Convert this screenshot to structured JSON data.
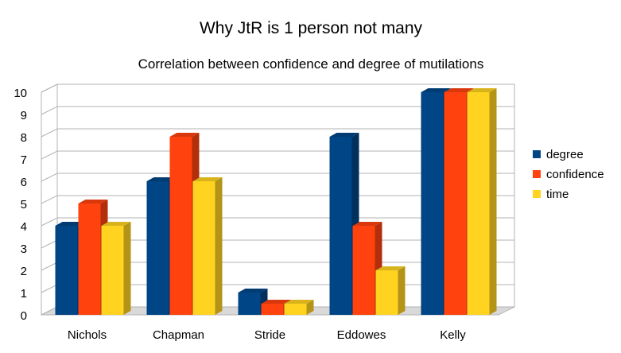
{
  "chart_data": {
    "type": "bar",
    "title": "Why JtR is 1 person not many",
    "subtitle": "Correlation between confidence and degree of mutilations",
    "xlabel": "",
    "ylabel": "",
    "ylim": [
      0,
      10
    ],
    "yticks": [
      "0",
      "1",
      "2",
      "3",
      "4",
      "5",
      "6",
      "7",
      "8",
      "9",
      "10"
    ],
    "grid": true,
    "legend_position": "right",
    "categories": [
      "Nichols",
      "Chapman",
      "Stride",
      "Eddowes",
      "Kelly"
    ],
    "series": [
      {
        "name": "degree",
        "values": [
          4,
          6,
          1,
          8,
          10
        ],
        "color": "#004586"
      },
      {
        "name": "confidence",
        "values": [
          5,
          8,
          0.5,
          4,
          10
        ],
        "color": "#ff420e"
      },
      {
        "name": "time",
        "values": [
          4,
          6,
          0.5,
          2,
          10
        ],
        "color": "#ffd320"
      }
    ]
  }
}
